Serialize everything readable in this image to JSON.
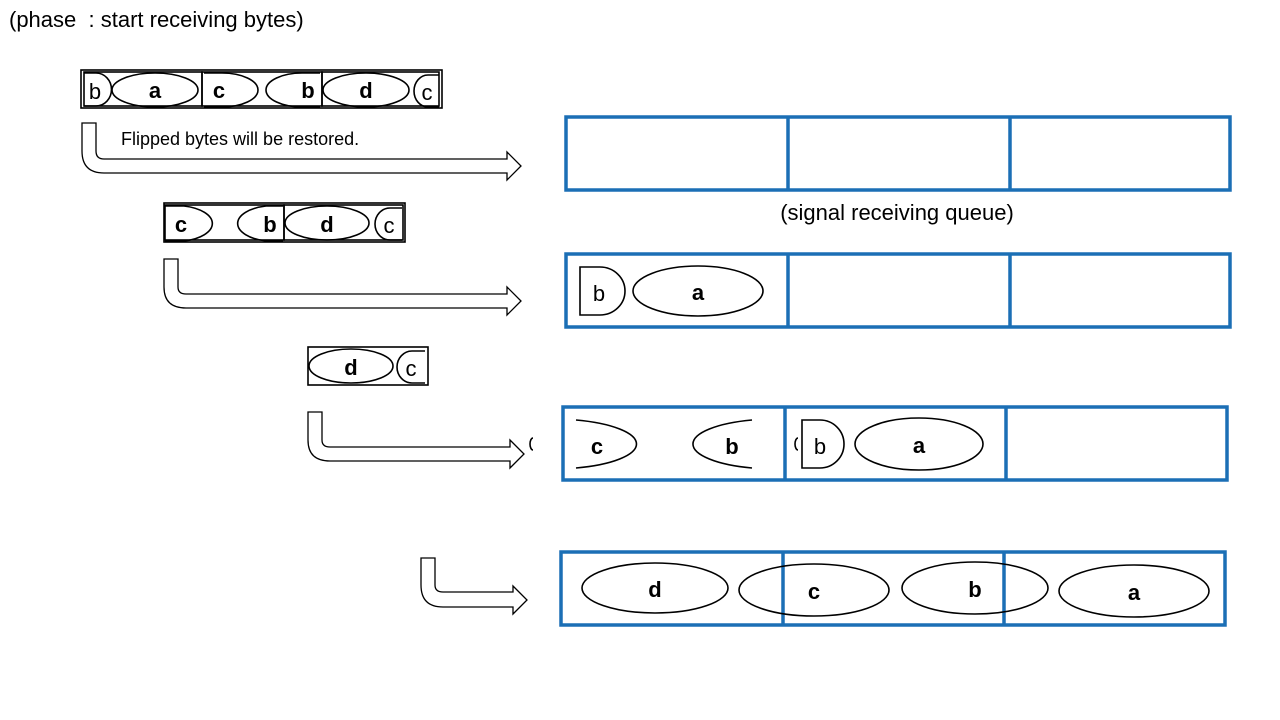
{
  "title": "(phase  : start receiving bytes)",
  "note": "Flipped bytes will be restored.",
  "queue_caption": "(signal receiving queue)",
  "colors": {
    "queue_border": "#1b6fb5",
    "outline": "#000000"
  },
  "incoming_streams": [
    {
      "bytes": [
        "b",
        "a",
        "c",
        "b",
        "d",
        "c"
      ]
    },
    {
      "bytes": [
        "c",
        "b",
        "d",
        "c"
      ]
    },
    {
      "bytes": [
        "d",
        "c"
      ]
    }
  ],
  "queue_states": [
    {
      "contents": []
    },
    {
      "contents": [
        "b",
        "a"
      ]
    },
    {
      "contents": [
        "c",
        "b",
        "b",
        "a"
      ]
    },
    {
      "contents": [
        "d",
        "c",
        "b",
        "a"
      ]
    }
  ]
}
